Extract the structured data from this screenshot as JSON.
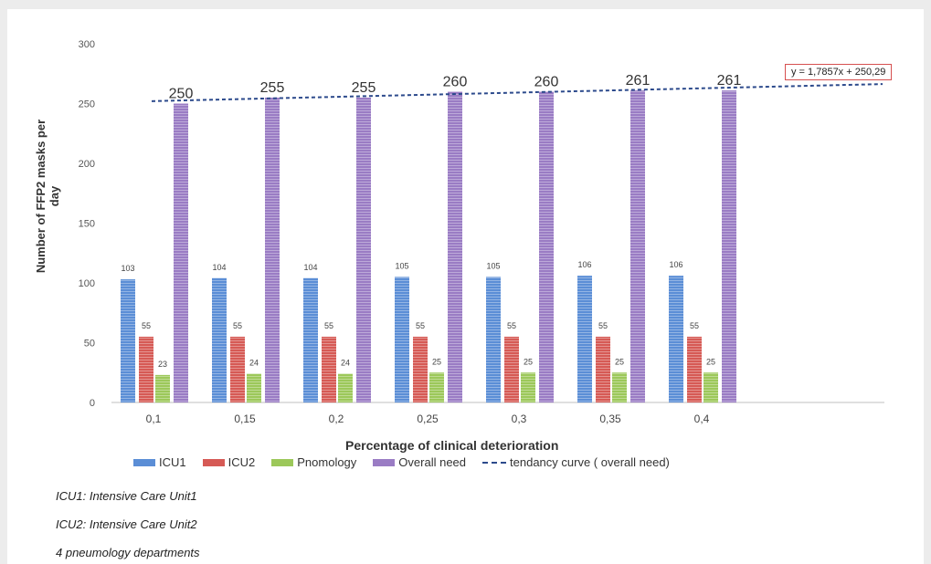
{
  "chart_data": {
    "type": "bar",
    "categories": [
      "0,1",
      "0,15",
      "0,2",
      "0,25",
      "0,3",
      "0,35",
      "0,4"
    ],
    "series": [
      {
        "name": "ICU1",
        "values": [
          103,
          104,
          104,
          105,
          105,
          106,
          106
        ],
        "color": "#5b8ed6"
      },
      {
        "name": "ICU2",
        "values": [
          55,
          55,
          55,
          55,
          55,
          55,
          55
        ],
        "color": "#d65a55"
      },
      {
        "name": "Pnomology",
        "values": [
          23,
          24,
          24,
          25,
          25,
          25,
          25
        ],
        "color": "#9cc85a"
      },
      {
        "name": "Overall need",
        "values": [
          250,
          255,
          255,
          260,
          260,
          261,
          261
        ],
        "color": "#9a7cc4"
      }
    ],
    "trendline": {
      "name": "tendancy curve ( overall need)",
      "equation": "y = 1,7857x + 250,29",
      "color": "#2c4a8c"
    },
    "xlabel": "Percentage of clinical deterioration",
    "ylabel": "Number of FFP2 masks per day",
    "ylim": [
      0,
      300
    ],
    "yticks": [
      0,
      50,
      100,
      150,
      200,
      250,
      300
    ],
    "grid": false,
    "legend": "bottom"
  },
  "notes": [
    "ICU1: Intensive Care Unit1",
    "ICU2: Intensive Care Unit2",
    "4 pneumology departments"
  ]
}
